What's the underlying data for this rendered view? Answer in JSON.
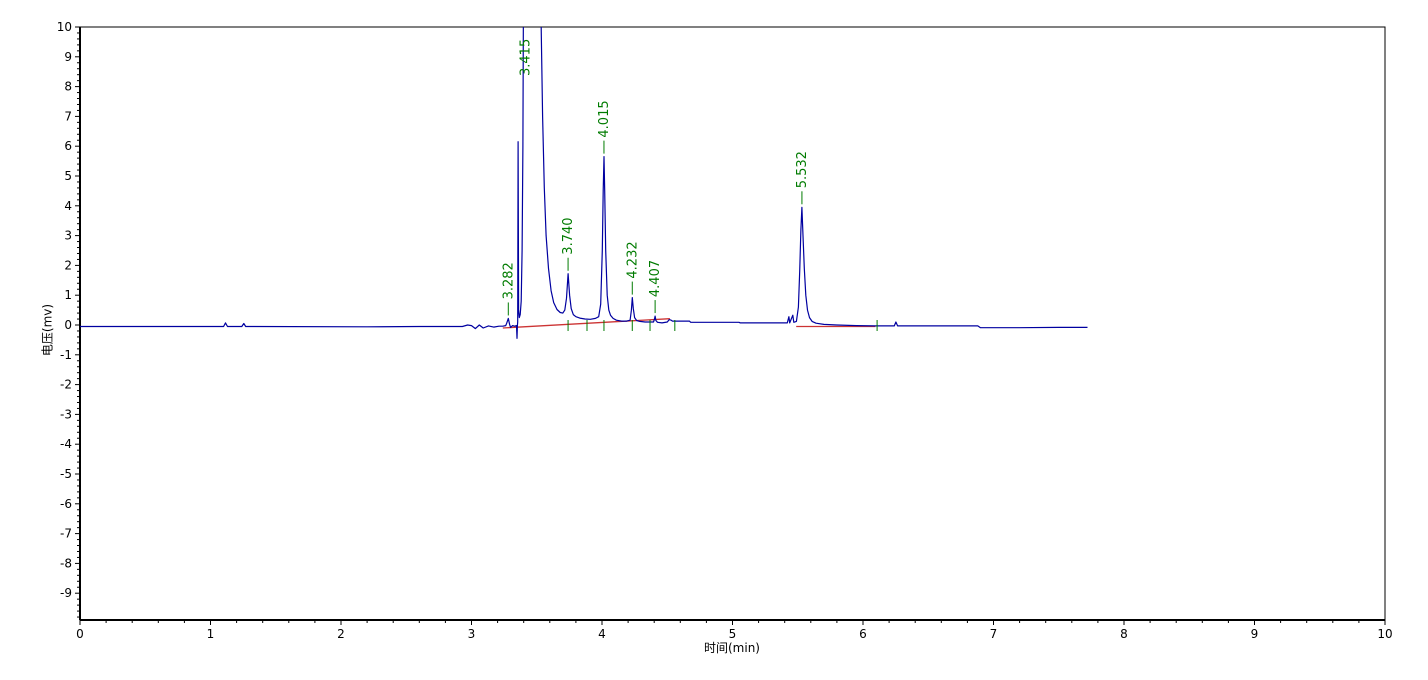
{
  "chart_data": {
    "type": "line",
    "title": "",
    "xlabel": "时间(min)",
    "ylabel": "电压(mv)",
    "xlim": [
      0,
      10
    ],
    "ylim": [
      -10,
      10
    ],
    "x_ticks": [
      0,
      1,
      2,
      3,
      4,
      5,
      6,
      7,
      8,
      9,
      10
    ],
    "y_ticks": [
      10,
      9,
      8,
      7,
      6,
      5,
      4,
      3,
      2,
      1,
      0,
      -1,
      -2,
      -3,
      -4,
      -5,
      -6,
      -7,
      -8,
      -9
    ],
    "minor_tick_interval": 0.2,
    "grid": false,
    "legend": false,
    "colors": {
      "signal": "#0000A0",
      "integration_baseline": "#CC3333",
      "peak_label": "#007B00",
      "axis": "#000000",
      "background": "#FFFFFF"
    },
    "peaks": [
      {
        "label": "3.282",
        "time": 3.282,
        "apex_mv": 0.22,
        "clipped": false
      },
      {
        "label": "3.415",
        "time": 3.415,
        "apex_mv": 10.6,
        "clipped": true
      },
      {
        "label": "3.740",
        "time": 3.74,
        "apex_mv": 1.72,
        "clipped": false
      },
      {
        "label": "4.015",
        "time": 4.015,
        "apex_mv": 5.65,
        "clipped": false
      },
      {
        "label": "4.232",
        "time": 4.232,
        "apex_mv": 0.92,
        "clipped": false
      },
      {
        "label": "4.407",
        "time": 4.407,
        "apex_mv": 0.3,
        "clipped": false
      },
      {
        "label": "5.532",
        "time": 5.532,
        "apex_mv": 3.95,
        "clipped": false
      }
    ],
    "series": [
      {
        "name": "signal",
        "points": [
          [
            0.0,
            -0.05
          ],
          [
            0.6,
            -0.05
          ],
          [
            1.1,
            -0.05
          ],
          [
            1.115,
            0.07
          ],
          [
            1.13,
            -0.05
          ],
          [
            1.24,
            -0.05
          ],
          [
            1.255,
            0.05
          ],
          [
            1.27,
            -0.05
          ],
          [
            2.2,
            -0.06
          ],
          [
            2.6,
            -0.05
          ],
          [
            2.93,
            -0.05
          ],
          [
            2.97,
            0.0
          ],
          [
            3.0,
            -0.02
          ],
          [
            3.03,
            -0.12
          ],
          [
            3.06,
            0.0
          ],
          [
            3.09,
            -0.1
          ],
          [
            3.13,
            -0.03
          ],
          [
            3.17,
            -0.07
          ],
          [
            3.21,
            -0.04
          ],
          [
            3.24,
            -0.04
          ],
          [
            3.262,
            -0.02
          ],
          [
            3.27,
            0.06
          ],
          [
            3.282,
            0.22
          ],
          [
            3.292,
            0.02
          ],
          [
            3.3,
            -0.08
          ],
          [
            3.315,
            -0.02
          ],
          [
            3.33,
            -0.04
          ],
          [
            3.345,
            -0.02
          ],
          [
            3.349,
            -0.45
          ],
          [
            3.352,
            -0.02
          ],
          [
            3.354,
            0.1
          ],
          [
            3.357,
            6.15
          ],
          [
            3.361,
            0.5
          ],
          [
            3.366,
            0.25
          ],
          [
            3.373,
            0.35
          ],
          [
            3.381,
            0.8
          ],
          [
            3.388,
            2.5
          ],
          [
            3.394,
            6.0
          ],
          [
            3.398,
            10.6
          ],
          [
            3.532,
            10.6
          ],
          [
            3.545,
            7.0
          ],
          [
            3.558,
            4.6
          ],
          [
            3.572,
            3.0
          ],
          [
            3.59,
            1.9
          ],
          [
            3.61,
            1.15
          ],
          [
            3.63,
            0.75
          ],
          [
            3.655,
            0.52
          ],
          [
            3.68,
            0.42
          ],
          [
            3.7,
            0.4
          ],
          [
            3.715,
            0.5
          ],
          [
            3.728,
            0.9
          ],
          [
            3.74,
            1.72
          ],
          [
            3.752,
            1.0
          ],
          [
            3.764,
            0.55
          ],
          [
            3.78,
            0.35
          ],
          [
            3.8,
            0.28
          ],
          [
            3.83,
            0.23
          ],
          [
            3.87,
            0.2
          ],
          [
            3.91,
            0.19
          ],
          [
            3.95,
            0.22
          ],
          [
            3.975,
            0.28
          ],
          [
            3.99,
            0.7
          ],
          [
            4.002,
            2.5
          ],
          [
            4.009,
            4.5
          ],
          [
            4.015,
            5.65
          ],
          [
            4.021,
            4.5
          ],
          [
            4.028,
            2.5
          ],
          [
            4.04,
            1.0
          ],
          [
            4.052,
            0.5
          ],
          [
            4.065,
            0.33
          ],
          [
            4.085,
            0.22
          ],
          [
            4.11,
            0.16
          ],
          [
            4.15,
            0.13
          ],
          [
            4.19,
            0.13
          ],
          [
            4.215,
            0.16
          ],
          [
            4.225,
            0.5
          ],
          [
            4.232,
            0.92
          ],
          [
            4.24,
            0.55
          ],
          [
            4.25,
            0.25
          ],
          [
            4.265,
            0.15
          ],
          [
            4.29,
            0.12
          ],
          [
            4.33,
            0.1
          ],
          [
            4.37,
            0.1
          ],
          [
            4.395,
            0.1
          ],
          [
            4.402,
            0.2
          ],
          [
            4.407,
            0.3
          ],
          [
            4.413,
            0.15
          ],
          [
            4.425,
            0.09
          ],
          [
            4.46,
            0.07
          ],
          [
            4.5,
            0.1
          ],
          [
            4.515,
            0.18
          ],
          [
            4.53,
            0.16
          ],
          [
            4.54,
            0.13
          ],
          [
            4.67,
            0.13
          ],
          [
            4.68,
            0.09
          ],
          [
            5.05,
            0.09
          ],
          [
            5.06,
            0.07
          ],
          [
            5.42,
            0.07
          ],
          [
            5.432,
            0.28
          ],
          [
            5.438,
            0.07
          ],
          [
            5.462,
            0.33
          ],
          [
            5.47,
            0.09
          ],
          [
            5.49,
            0.12
          ],
          [
            5.505,
            0.6
          ],
          [
            5.515,
            1.8
          ],
          [
            5.524,
            3.2
          ],
          [
            5.532,
            3.95
          ],
          [
            5.54,
            3.0
          ],
          [
            5.55,
            1.9
          ],
          [
            5.562,
            1.0
          ],
          [
            5.575,
            0.5
          ],
          [
            5.59,
            0.25
          ],
          [
            5.61,
            0.12
          ],
          [
            5.64,
            0.06
          ],
          [
            5.7,
            0.02
          ],
          [
            5.8,
            0.0
          ],
          [
            5.95,
            -0.02
          ],
          [
            6.09,
            -0.03
          ],
          [
            6.24,
            -0.03
          ],
          [
            6.252,
            0.1
          ],
          [
            6.265,
            -0.03
          ],
          [
            6.6,
            -0.03
          ],
          [
            6.88,
            -0.03
          ],
          [
            6.9,
            -0.09
          ],
          [
            7.2,
            -0.09
          ],
          [
            7.5,
            -0.08
          ],
          [
            7.72,
            -0.08
          ]
        ]
      }
    ],
    "integration_baselines": [
      {
        "points": [
          [
            3.24,
            -0.1
          ],
          [
            4.52,
            0.21
          ]
        ]
      },
      {
        "points": [
          [
            5.488,
            -0.05
          ],
          [
            6.095,
            -0.05
          ]
        ]
      }
    ],
    "event_marks": [
      3.74,
      3.885,
      4.015,
      4.232,
      4.368,
      4.558,
      6.108
    ]
  }
}
